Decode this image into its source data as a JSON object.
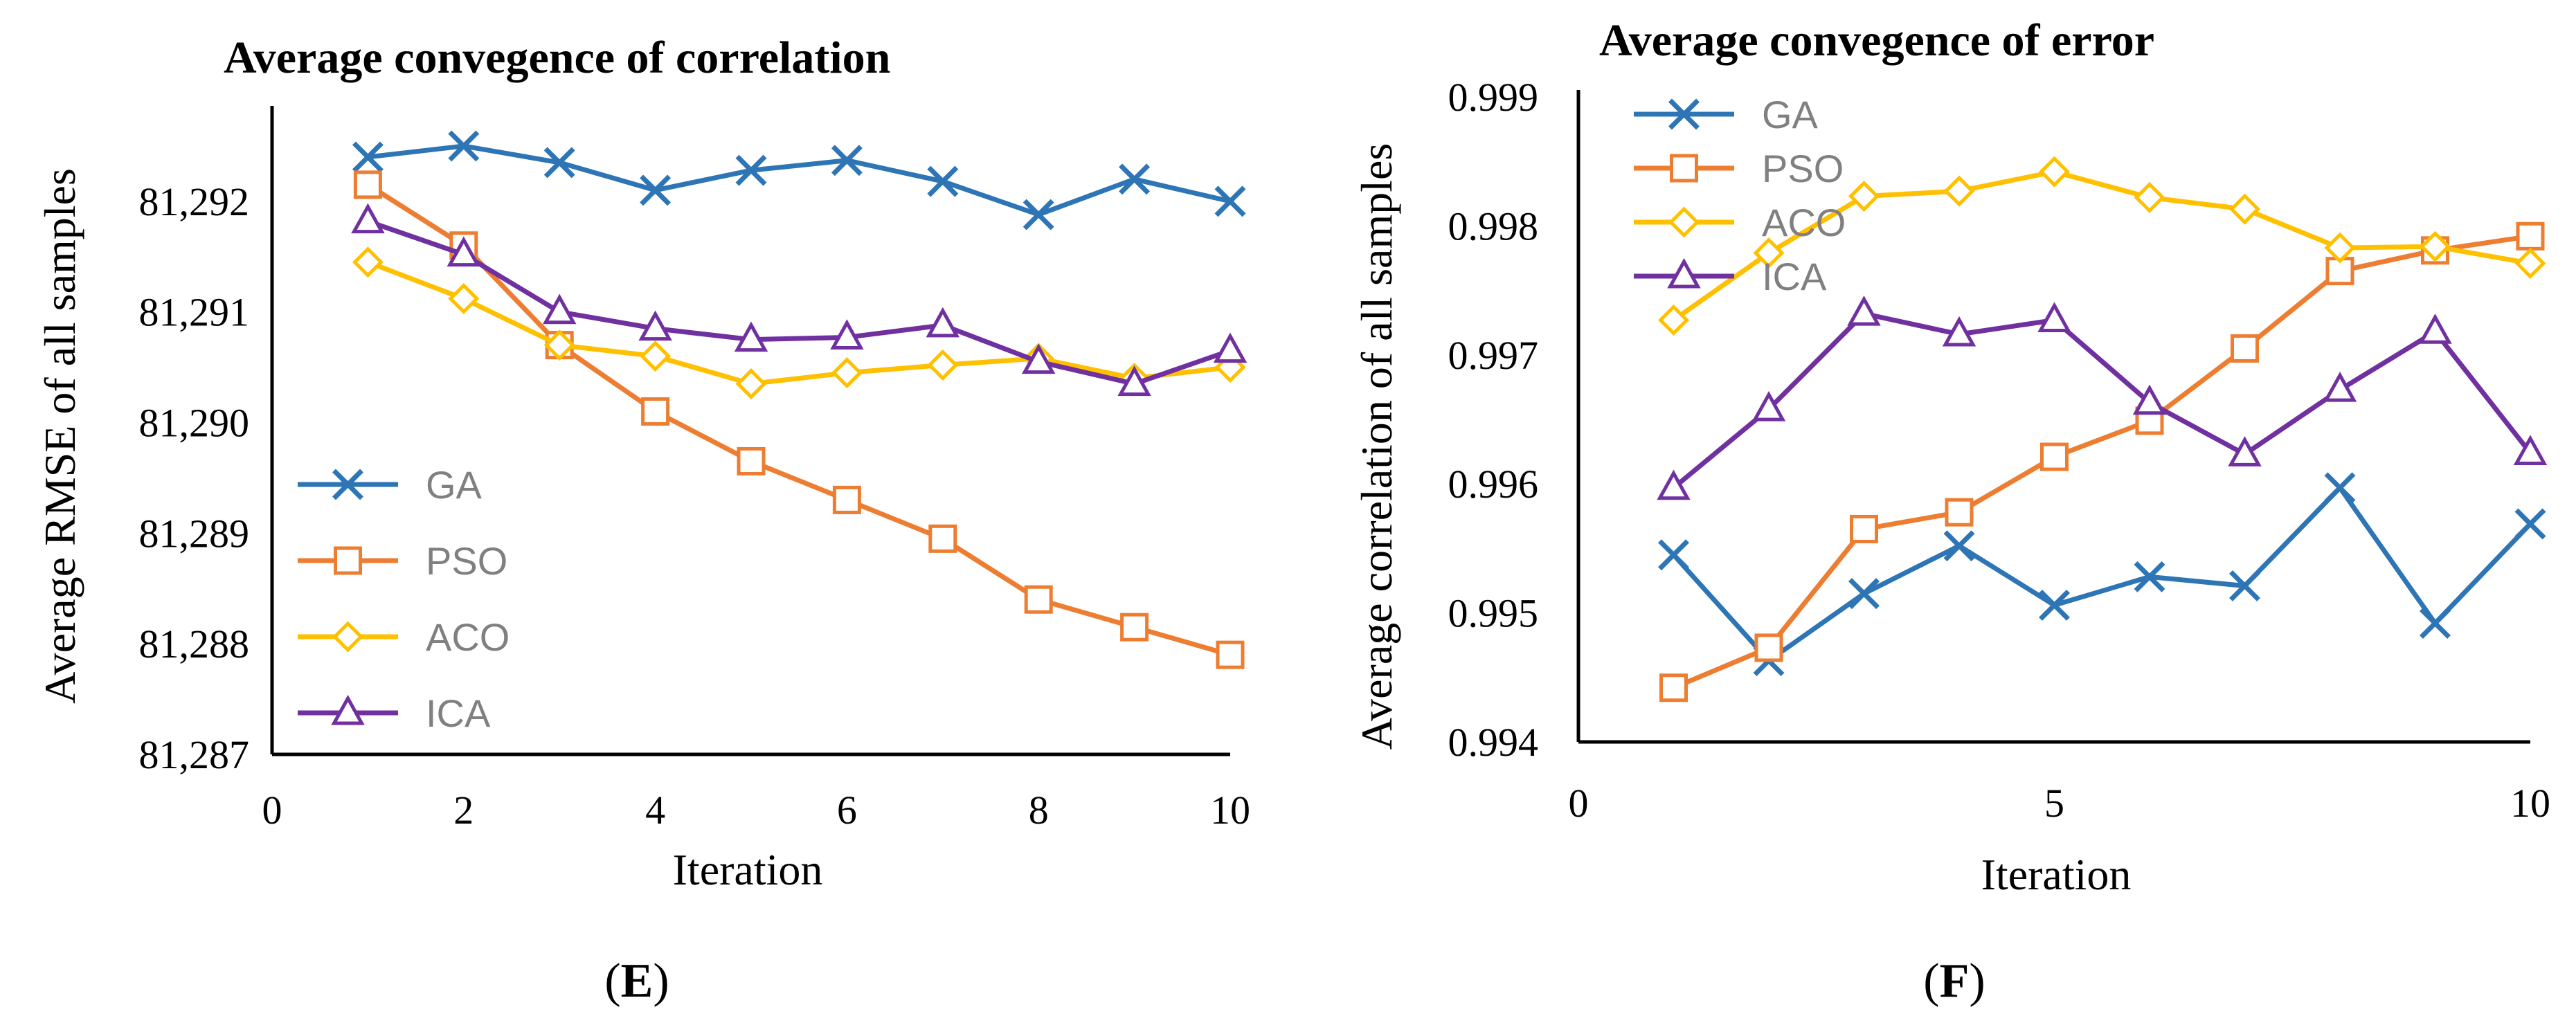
{
  "chart_data": [
    {
      "type": "line",
      "panel": "E",
      "title": "Average convegence of correlation",
      "xlabel": "Iteration",
      "ylabel": "Average RMSE of all samples",
      "xlim": [
        0,
        10
      ],
      "ylim": [
        81287,
        81292.8
      ],
      "xticks": [
        0,
        2,
        4,
        6,
        8,
        10
      ],
      "xtick_labels": [
        "0",
        "2",
        "4",
        "6",
        "8",
        "10"
      ],
      "yticks": [
        81287,
        81288,
        81289,
        81290,
        81291,
        81292
      ],
      "ytick_labels": [
        "81,287",
        "81,288",
        "81,289",
        "81,290",
        "81,291",
        "81,292"
      ],
      "legend_position": "bottom-left",
      "x": [
        1,
        2,
        3,
        4,
        5,
        6,
        7,
        8,
        9,
        10
      ],
      "series": [
        {
          "name": "GA",
          "color": "#2E75B6",
          "marker": "x",
          "values": [
            81292.4,
            81292.5,
            81292.35,
            81292.1,
            81292.28,
            81292.37,
            81292.18,
            81291.88,
            81292.2,
            81292.0
          ]
        },
        {
          "name": "PSO",
          "color": "#ED7D31",
          "marker": "square",
          "values": [
            81292.15,
            81291.6,
            81290.7,
            81290.1,
            81289.65,
            81289.3,
            81288.95,
            81288.4,
            81288.15,
            81287.9
          ]
        },
        {
          "name": "ACO",
          "color": "#FFC000",
          "marker": "diamond",
          "values": [
            81291.45,
            81291.12,
            81290.7,
            81290.6,
            81290.35,
            81290.45,
            81290.52,
            81290.58,
            81290.4,
            81290.5
          ]
        },
        {
          "name": "ICA",
          "color": "#7030A0",
          "marker": "triangle",
          "values": [
            81291.82,
            81291.52,
            81291.0,
            81290.85,
            81290.75,
            81290.77,
            81290.88,
            81290.55,
            81290.35,
            81290.65
          ]
        }
      ]
    },
    {
      "type": "line",
      "panel": "F",
      "title": "Average convegence of error",
      "xlabel": "Iteration",
      "ylabel": "Average correlation of all samples",
      "xlim": [
        0,
        10
      ],
      "ylim": [
        0.994,
        0.999
      ],
      "xticks": [
        0,
        5,
        10
      ],
      "xtick_labels": [
        "0",
        "5",
        "10"
      ],
      "yticks": [
        0.994,
        0.995,
        0.996,
        0.997,
        0.998,
        0.999
      ],
      "ytick_labels": [
        "0.994",
        "0.995",
        "0.996",
        "0.997",
        "0.998",
        "0.999"
      ],
      "legend_position": "top-left",
      "x": [
        1,
        2,
        3,
        4,
        5,
        6,
        7,
        8,
        9,
        10
      ],
      "series": [
        {
          "name": "GA",
          "color": "#2E75B6",
          "marker": "x",
          "values": [
            0.99545,
            0.99463,
            0.99515,
            0.99552,
            0.99506,
            0.99528,
            0.99521,
            0.99597,
            0.99492,
            0.99569
          ]
        },
        {
          "name": "PSO",
          "color": "#ED7D31",
          "marker": "square",
          "values": [
            0.99442,
            0.99473,
            0.99565,
            0.99578,
            0.99621,
            0.99649,
            0.99705,
            0.99765,
            0.99781,
            0.99792
          ]
        },
        {
          "name": "ACO",
          "color": "#FFC000",
          "marker": "diamond",
          "values": [
            0.99727,
            0.99779,
            0.99823,
            0.99827,
            0.99842,
            0.99822,
            0.99813,
            0.99783,
            0.99784,
            0.99771
          ]
        },
        {
          "name": "ICA",
          "color": "#7030A0",
          "marker": "triangle",
          "values": [
            0.99597,
            0.99658,
            0.99732,
            0.99716,
            0.99727,
            0.99663,
            0.99623,
            0.99673,
            0.99718,
            0.99624
          ]
        }
      ]
    }
  ],
  "panel_labels": {
    "left": {
      "open": "(",
      "letter": "E",
      "close": ")"
    },
    "right": {
      "open": "(",
      "letter": "F",
      "close": ")"
    }
  }
}
